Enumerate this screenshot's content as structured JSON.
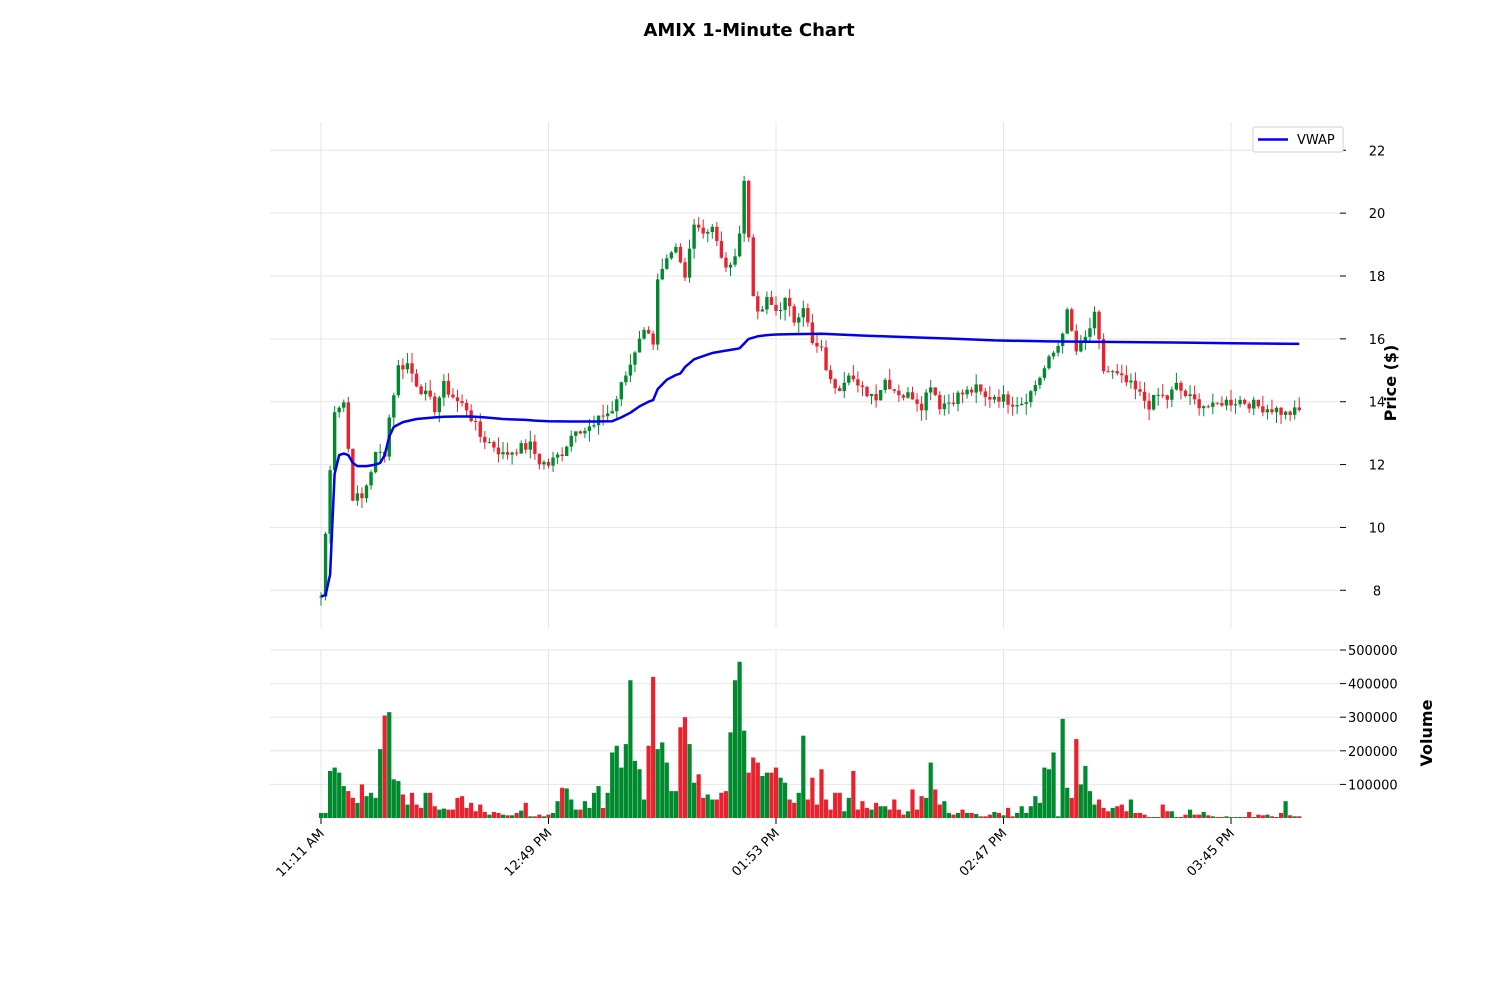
{
  "title": "AMIX 1-Minute Chart",
  "colors": {
    "up": "#008a2e",
    "down": "#e8232f",
    "vwap": "#0000ee",
    "grid": "#e6e6e6"
  },
  "chart_data": {
    "type": "candlestick",
    "title": "AMIX 1-Minute Chart",
    "price_axis": {
      "label": "Price ($)",
      "ticks": [
        8,
        10,
        12,
        14,
        16,
        18,
        20,
        22
      ],
      "ylim": [
        6.8,
        22.9
      ]
    },
    "volume_axis": {
      "label": "Volume",
      "ticks": [
        100000,
        200000,
        300000,
        400000,
        500000
      ],
      "tick_labels": [
        "100000",
        "200000",
        "300000",
        "400000",
        "500000"
      ],
      "ylim": [
        0,
        500000
      ]
    },
    "x_axis": {
      "tick_labels": [
        "11:11 AM",
        "12:49 PM",
        "01:53 PM",
        "02:47 PM",
        "03:45 PM"
      ],
      "tick_index": [
        0,
        50,
        100,
        150,
        200
      ],
      "count": 216
    },
    "legend": {
      "entries": [
        "VWAP"
      ],
      "placement": "top-right"
    },
    "grid": true,
    "price_path": [
      [
        0,
        7.8
      ],
      [
        3,
        13.8
      ],
      [
        5,
        14.0
      ],
      [
        7,
        11.0
      ],
      [
        9,
        10.9
      ],
      [
        12,
        12.3
      ],
      [
        14,
        12.4
      ],
      [
        15,
        13.5
      ],
      [
        17,
        15.1
      ],
      [
        19,
        15.2
      ],
      [
        21,
        14.6
      ],
      [
        23,
        14.2
      ],
      [
        25,
        13.8
      ],
      [
        27,
        14.5
      ],
      [
        30,
        14.0
      ],
      [
        32,
        13.8
      ],
      [
        35,
        12.9
      ],
      [
        38,
        12.6
      ],
      [
        40,
        12.3
      ],
      [
        43,
        12.5
      ],
      [
        46,
        12.6
      ],
      [
        48,
        12.1
      ],
      [
        50,
        12.0
      ],
      [
        53,
        12.4
      ],
      [
        56,
        13.2
      ],
      [
        58,
        13.1
      ],
      [
        60,
        13.2
      ],
      [
        62,
        13.6
      ],
      [
        64,
        13.7
      ],
      [
        66,
        14.5
      ],
      [
        68,
        15.2
      ],
      [
        70,
        16.1
      ],
      [
        72,
        16.3
      ],
      [
        73,
        15.9
      ],
      [
        74,
        17.8
      ],
      [
        76,
        18.4
      ],
      [
        78,
        18.8
      ],
      [
        80,
        17.9
      ],
      [
        82,
        19.8
      ],
      [
        84,
        19.4
      ],
      [
        86,
        19.6
      ],
      [
        88,
        18.5
      ],
      [
        90,
        18.2
      ],
      [
        92,
        19.4
      ],
      [
        93,
        21.0
      ],
      [
        95,
        17.5
      ],
      [
        96,
        16.7
      ],
      [
        98,
        17.2
      ],
      [
        100,
        16.9
      ],
      [
        102,
        17.2
      ],
      [
        104,
        16.6
      ],
      [
        106,
        17.1
      ],
      [
        108,
        15.8
      ],
      [
        110,
        15.6
      ],
      [
        112,
        14.6
      ],
      [
        114,
        14.5
      ],
      [
        116,
        15.0
      ],
      [
        118,
        14.4
      ],
      [
        120,
        14.3
      ],
      [
        122,
        14.2
      ],
      [
        124,
        14.7
      ],
      [
        126,
        14.4
      ],
      [
        128,
        14.2
      ],
      [
        130,
        14.2
      ],
      [
        132,
        13.9
      ],
      [
        134,
        14.6
      ],
      [
        136,
        13.9
      ],
      [
        138,
        14.0
      ],
      [
        140,
        14.2
      ],
      [
        142,
        14.3
      ],
      [
        144,
        14.4
      ],
      [
        146,
        14.1
      ],
      [
        148,
        14.2
      ],
      [
        150,
        14.1
      ],
      [
        152,
        14.0
      ],
      [
        154,
        14.0
      ],
      [
        156,
        14.3
      ],
      [
        158,
        14.8
      ],
      [
        160,
        15.3
      ],
      [
        162,
        15.8
      ],
      [
        164,
        16.8
      ],
      [
        166,
        15.6
      ],
      [
        168,
        16.0
      ],
      [
        170,
        16.7
      ],
      [
        172,
        15.0
      ],
      [
        174,
        14.9
      ],
      [
        176,
        14.7
      ],
      [
        178,
        14.5
      ],
      [
        180,
        14.2
      ],
      [
        182,
        13.9
      ],
      [
        184,
        14.2
      ],
      [
        186,
        14.1
      ],
      [
        188,
        14.5
      ],
      [
        190,
        14.2
      ],
      [
        192,
        14.0
      ],
      [
        194,
        13.9
      ],
      [
        196,
        13.8
      ],
      [
        198,
        14.0
      ],
      [
        200,
        14.0
      ],
      [
        202,
        14.05
      ],
      [
        204,
        13.95
      ],
      [
        206,
        13.85
      ],
      [
        208,
        13.8
      ],
      [
        210,
        13.75
      ],
      [
        212,
        13.6
      ],
      [
        213,
        13.65
      ],
      [
        215,
        13.7
      ]
    ],
    "vwap": [
      [
        0,
        7.8
      ],
      [
        1,
        7.85
      ],
      [
        2,
        8.5
      ],
      [
        3,
        11.7
      ],
      [
        4,
        12.3
      ],
      [
        5,
        12.35
      ],
      [
        6,
        12.3
      ],
      [
        7,
        12.05
      ],
      [
        8,
        11.95
      ],
      [
        10,
        11.95
      ],
      [
        12,
        12.0
      ],
      [
        13,
        12.05
      ],
      [
        14,
        12.3
      ],
      [
        15,
        12.9
      ],
      [
        16,
        13.2
      ],
      [
        18,
        13.35
      ],
      [
        21,
        13.45
      ],
      [
        25,
        13.5
      ],
      [
        27,
        13.52
      ],
      [
        30,
        13.53
      ],
      [
        33,
        13.53
      ],
      [
        36,
        13.5
      ],
      [
        40,
        13.45
      ],
      [
        45,
        13.42
      ],
      [
        47,
        13.4
      ],
      [
        50,
        13.38
      ],
      [
        55,
        13.37
      ],
      [
        60,
        13.37
      ],
      [
        64,
        13.38
      ],
      [
        66,
        13.5
      ],
      [
        68,
        13.65
      ],
      [
        70,
        13.85
      ],
      [
        72,
        14.0
      ],
      [
        73,
        14.05
      ],
      [
        74,
        14.4
      ],
      [
        76,
        14.7
      ],
      [
        78,
        14.85
      ],
      [
        79,
        14.9
      ],
      [
        80,
        15.1
      ],
      [
        82,
        15.35
      ],
      [
        84,
        15.45
      ],
      [
        86,
        15.55
      ],
      [
        88,
        15.6
      ],
      [
        90,
        15.65
      ],
      [
        92,
        15.7
      ],
      [
        93,
        15.85
      ],
      [
        94,
        16.0
      ],
      [
        96,
        16.08
      ],
      [
        98,
        16.12
      ],
      [
        100,
        16.14
      ],
      [
        104,
        16.15
      ],
      [
        110,
        16.16
      ],
      [
        120,
        16.1
      ],
      [
        140,
        16.0
      ],
      [
        148,
        15.95
      ],
      [
        160,
        15.92
      ],
      [
        175,
        15.9
      ],
      [
        190,
        15.88
      ],
      [
        200,
        15.86
      ],
      [
        215,
        15.84
      ]
    ],
    "volume_peaks": [
      [
        0,
        15000
      ],
      [
        1,
        15000
      ],
      [
        2,
        140000
      ],
      [
        3,
        150000
      ],
      [
        4,
        135000
      ],
      [
        5,
        95000
      ],
      [
        6,
        80000
      ],
      [
        7,
        60000
      ],
      [
        8,
        45000
      ],
      [
        9,
        100000
      ],
      [
        10,
        65000
      ],
      [
        11,
        75000
      ],
      [
        12,
        60000
      ],
      [
        13,
        205000
      ],
      [
        14,
        305000
      ],
      [
        15,
        315000
      ],
      [
        16,
        115000
      ],
      [
        17,
        110000
      ],
      [
        18,
        70000
      ],
      [
        19,
        40000
      ],
      [
        20,
        75000
      ],
      [
        21,
        40000
      ],
      [
        22,
        30000
      ],
      [
        23,
        75000
      ],
      [
        24,
        75000
      ],
      [
        25,
        35000
      ],
      [
        26,
        25000
      ],
      [
        27,
        28000
      ],
      [
        28,
        25000
      ],
      [
        29,
        25000
      ],
      [
        30,
        60000
      ],
      [
        31,
        65000
      ],
      [
        32,
        30000
      ],
      [
        33,
        45000
      ],
      [
        34,
        20000
      ],
      [
        35,
        40000
      ],
      [
        36,
        18000
      ],
      [
        37,
        10000
      ],
      [
        38,
        18000
      ],
      [
        39,
        15000
      ],
      [
        40,
        10000
      ],
      [
        41,
        8000
      ],
      [
        42,
        8000
      ],
      [
        43,
        15000
      ],
      [
        44,
        22000
      ],
      [
        45,
        45000
      ],
      [
        46,
        5000
      ],
      [
        47,
        5000
      ],
      [
        48,
        10000
      ],
      [
        49,
        5000
      ],
      [
        50,
        10000
      ],
      [
        51,
        15000
      ],
      [
        52,
        50000
      ],
      [
        53,
        90000
      ],
      [
        54,
        88000
      ],
      [
        55,
        55000
      ],
      [
        56,
        25000
      ],
      [
        57,
        25000
      ],
      [
        58,
        50000
      ],
      [
        59,
        30000
      ],
      [
        60,
        75000
      ],
      [
        61,
        95000
      ],
      [
        62,
        30000
      ],
      [
        63,
        75000
      ],
      [
        64,
        195000
      ],
      [
        65,
        215000
      ],
      [
        66,
        150000
      ],
      [
        67,
        220000
      ],
      [
        68,
        410000
      ],
      [
        69,
        170000
      ],
      [
        70,
        145000
      ],
      [
        71,
        55000
      ],
      [
        72,
        215000
      ],
      [
        73,
        420000
      ],
      [
        74,
        205000
      ],
      [
        75,
        225000
      ],
      [
        76,
        165000
      ],
      [
        77,
        80000
      ],
      [
        78,
        80000
      ],
      [
        79,
        270000
      ],
      [
        80,
        300000
      ],
      [
        81,
        220000
      ],
      [
        82,
        105000
      ],
      [
        83,
        130000
      ],
      [
        84,
        60000
      ],
      [
        85,
        70000
      ],
      [
        86,
        55000
      ],
      [
        87,
        55000
      ],
      [
        88,
        75000
      ],
      [
        89,
        80000
      ],
      [
        90,
        255000
      ],
      [
        91,
        410000
      ],
      [
        92,
        465000
      ],
      [
        93,
        260000
      ],
      [
        94,
        135000
      ],
      [
        95,
        180000
      ],
      [
        96,
        165000
      ],
      [
        97,
        125000
      ],
      [
        98,
        135000
      ],
      [
        99,
        135000
      ],
      [
        100,
        150000
      ],
      [
        101,
        120000
      ],
      [
        102,
        105000
      ],
      [
        103,
        55000
      ],
      [
        104,
        45000
      ],
      [
        105,
        75000
      ],
      [
        106,
        245000
      ],
      [
        107,
        55000
      ],
      [
        108,
        120000
      ],
      [
        109,
        40000
      ],
      [
        110,
        145000
      ],
      [
        111,
        55000
      ],
      [
        112,
        25000
      ],
      [
        113,
        75000
      ],
      [
        114,
        75000
      ],
      [
        115,
        20000
      ],
      [
        116,
        60000
      ],
      [
        117,
        140000
      ],
      [
        118,
        25000
      ],
      [
        119,
        50000
      ],
      [
        120,
        30000
      ],
      [
        121,
        25000
      ],
      [
        122,
        45000
      ],
      [
        123,
        35000
      ],
      [
        124,
        35000
      ],
      [
        125,
        25000
      ],
      [
        126,
        55000
      ],
      [
        127,
        25000
      ],
      [
        128,
        10000
      ],
      [
        129,
        20000
      ],
      [
        130,
        85000
      ],
      [
        131,
        25000
      ],
      [
        132,
        65000
      ],
      [
        133,
        60000
      ],
      [
        134,
        165000
      ],
      [
        135,
        85000
      ],
      [
        136,
        40000
      ],
      [
        137,
        50000
      ],
      [
        138,
        15000
      ],
      [
        139,
        10000
      ],
      [
        140,
        15000
      ],
      [
        141,
        25000
      ],
      [
        142,
        15000
      ],
      [
        143,
        15000
      ],
      [
        144,
        12000
      ],
      [
        145,
        5000
      ],
      [
        146,
        5000
      ],
      [
        147,
        10000
      ],
      [
        148,
        18000
      ],
      [
        149,
        15000
      ],
      [
        150,
        8000
      ],
      [
        151,
        30000
      ],
      [
        152,
        5000
      ],
      [
        153,
        15000
      ],
      [
        154,
        35000
      ],
      [
        155,
        15000
      ],
      [
        156,
        35000
      ],
      [
        157,
        65000
      ],
      [
        158,
        45000
      ],
      [
        159,
        150000
      ],
      [
        160,
        145000
      ],
      [
        161,
        195000
      ],
      [
        162,
        5000
      ],
      [
        163,
        295000
      ],
      [
        164,
        90000
      ],
      [
        165,
        60000
      ],
      [
        166,
        235000
      ],
      [
        167,
        100000
      ],
      [
        168,
        155000
      ],
      [
        169,
        80000
      ],
      [
        170,
        40000
      ],
      [
        171,
        55000
      ],
      [
        172,
        30000
      ],
      [
        173,
        20000
      ],
      [
        174,
        30000
      ],
      [
        175,
        35000
      ],
      [
        176,
        40000
      ],
      [
        177,
        20000
      ],
      [
        178,
        55000
      ],
      [
        179,
        15000
      ],
      [
        180,
        15000
      ],
      [
        181,
        10000
      ],
      [
        182,
        3000
      ],
      [
        183,
        3000
      ],
      [
        184,
        3000
      ],
      [
        185,
        40000
      ],
      [
        186,
        20000
      ],
      [
        187,
        20000
      ],
      [
        188,
        3000
      ],
      [
        189,
        3000
      ],
      [
        190,
        10000
      ],
      [
        191,
        25000
      ],
      [
        192,
        10000
      ],
      [
        193,
        10000
      ],
      [
        194,
        18000
      ],
      [
        195,
        8000
      ],
      [
        196,
        5000
      ],
      [
        197,
        3000
      ],
      [
        198,
        3000
      ],
      [
        199,
        5000
      ],
      [
        200,
        3000
      ],
      [
        201,
        3000
      ],
      [
        202,
        3000
      ],
      [
        203,
        3000
      ],
      [
        204,
        18000
      ],
      [
        205,
        3000
      ],
      [
        206,
        10000
      ],
      [
        207,
        8000
      ],
      [
        208,
        10000
      ],
      [
        209,
        5000
      ],
      [
        210,
        3000
      ],
      [
        211,
        15000
      ],
      [
        212,
        50000
      ],
      [
        213,
        8000
      ],
      [
        214,
        5000
      ],
      [
        215,
        5000
      ]
    ]
  }
}
